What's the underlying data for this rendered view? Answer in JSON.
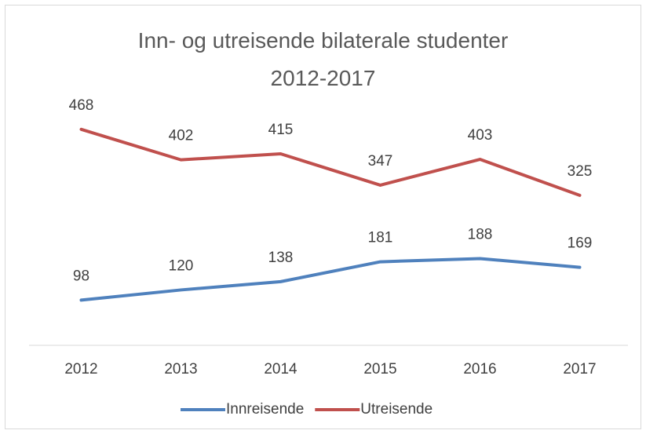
{
  "chart_data": {
    "type": "line",
    "title": "Inn- og utreisende bilaterale studenter 2012-2017",
    "categories": [
      "2012",
      "2013",
      "2014",
      "2015",
      "2016",
      "2017"
    ],
    "series": [
      {
        "name": "Innreisende",
        "color": "#4f81bd",
        "values": [
          98,
          120,
          138,
          181,
          188,
          169
        ]
      },
      {
        "name": "Utreisende",
        "color": "#c0504d",
        "values": [
          468,
          402,
          415,
          347,
          403,
          325
        ]
      }
    ],
    "ylim": [
      0,
      500
    ],
    "data_labels": true,
    "legend": "bottom"
  }
}
